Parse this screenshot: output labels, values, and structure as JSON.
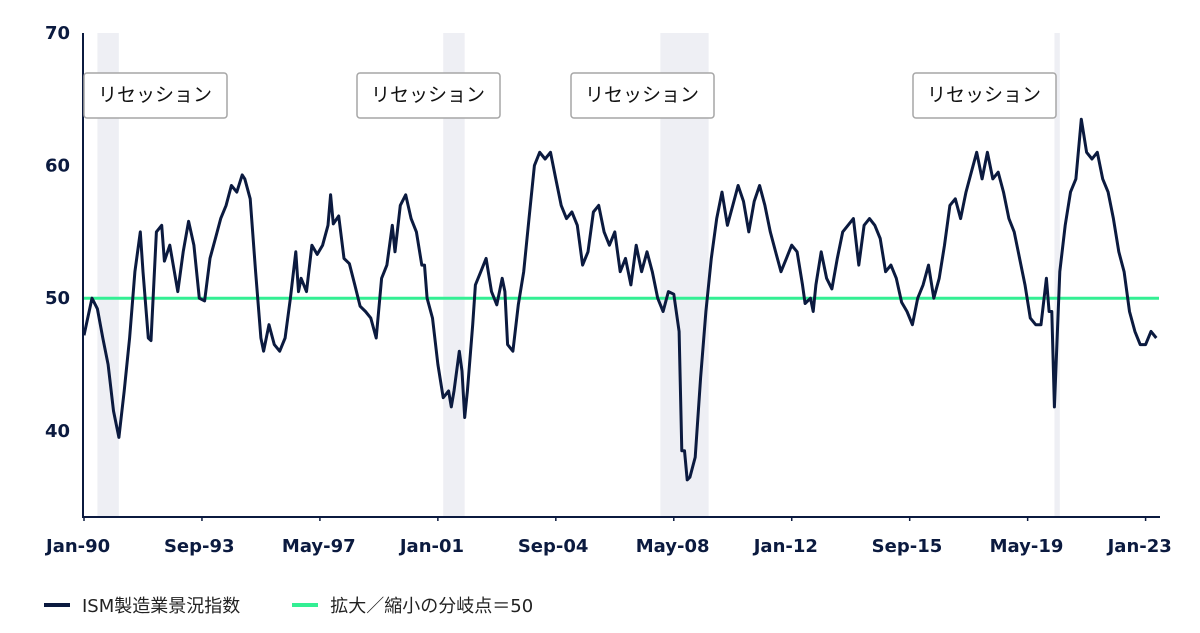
{
  "chart_data": {
    "type": "line",
    "ylim": [
      33.5,
      70
    ],
    "xlim_months": [
      0,
      401
    ],
    "y_ticks": [
      "40",
      "50",
      "60",
      "70"
    ],
    "x_ticks": [
      {
        "label": "Jan-90",
        "month": 0
      },
      {
        "label": "Sep-93",
        "month": 44
      },
      {
        "label": "May-97",
        "month": 88
      },
      {
        "label": "Jan-01",
        "month": 132
      },
      {
        "label": "Sep-04",
        "month": 176
      },
      {
        "label": "May-08",
        "month": 220
      },
      {
        "label": "Jan-12",
        "month": 264
      },
      {
        "label": "Sep-15",
        "month": 308
      },
      {
        "label": "May-19",
        "month": 352
      },
      {
        "label": "Jan-23",
        "month": 396
      }
    ],
    "recessions": [
      {
        "start": 5,
        "end": 13,
        "label": "リセッション"
      },
      {
        "start": 134,
        "end": 142,
        "label": "リセッション"
      },
      {
        "start": 215,
        "end": 233,
        "label": "リセッション"
      },
      {
        "start": 362,
        "end": 364,
        "label": "リセッション"
      }
    ],
    "series": [
      {
        "name": "ISM製造業景況指数",
        "color": "#0b1a3f",
        "points": [
          [
            0,
            47.2
          ],
          [
            3,
            50
          ],
          [
            5,
            49.2
          ],
          [
            7,
            47
          ],
          [
            9,
            45
          ],
          [
            11,
            41.5
          ],
          [
            13,
            39.5
          ],
          [
            15,
            43
          ],
          [
            17,
            47
          ],
          [
            19,
            52
          ],
          [
            21,
            55
          ],
          [
            22,
            52
          ],
          [
            24,
            47
          ],
          [
            25,
            46.8
          ],
          [
            27,
            55
          ],
          [
            29,
            55.5
          ],
          [
            30,
            52.8
          ],
          [
            32,
            54
          ],
          [
            35,
            50.5
          ],
          [
            37,
            53.5
          ],
          [
            39,
            55.8
          ],
          [
            41,
            54
          ],
          [
            43,
            50
          ],
          [
            45,
            49.8
          ],
          [
            47,
            53
          ],
          [
            49,
            54.5
          ],
          [
            51,
            56
          ],
          [
            53,
            57
          ],
          [
            55,
            58.5
          ],
          [
            57,
            58
          ],
          [
            59,
            59.3
          ],
          [
            60,
            59
          ],
          [
            62,
            57.5
          ],
          [
            64,
            52
          ],
          [
            66,
            47
          ],
          [
            67,
            46
          ],
          [
            69,
            48
          ],
          [
            71,
            46.5
          ],
          [
            73,
            46
          ],
          [
            75,
            47
          ],
          [
            77,
            50
          ],
          [
            79,
            53.5
          ],
          [
            80,
            50.5
          ],
          [
            81,
            51.5
          ],
          [
            83,
            50.5
          ],
          [
            85,
            54
          ],
          [
            87,
            53.3
          ],
          [
            89,
            54
          ],
          [
            91,
            55.5
          ],
          [
            92,
            57.8
          ],
          [
            93,
            55.6
          ],
          [
            95,
            56.2
          ],
          [
            97,
            53
          ],
          [
            99,
            52.6
          ],
          [
            101,
            51
          ],
          [
            103,
            49.4
          ],
          [
            105,
            49
          ],
          [
            107,
            48.5
          ],
          [
            109,
            47
          ],
          [
            111,
            51.5
          ],
          [
            113,
            52.5
          ],
          [
            115,
            55.5
          ],
          [
            116,
            53.5
          ],
          [
            118,
            57
          ],
          [
            120,
            57.8
          ],
          [
            122,
            56
          ],
          [
            124,
            55
          ],
          [
            126,
            52.5
          ],
          [
            127,
            52.5
          ],
          [
            128,
            50
          ],
          [
            130,
            48.5
          ],
          [
            132,
            45
          ],
          [
            134,
            42.5
          ],
          [
            136,
            43
          ],
          [
            137,
            41.8
          ],
          [
            138,
            43
          ],
          [
            140,
            46
          ],
          [
            141,
            44.5
          ],
          [
            142,
            41
          ],
          [
            143,
            43
          ],
          [
            145,
            48
          ],
          [
            146,
            51
          ],
          [
            148,
            52
          ],
          [
            150,
            53
          ],
          [
            152,
            50.5
          ],
          [
            154,
            49.5
          ],
          [
            156,
            51.5
          ],
          [
            157,
            50.5
          ],
          [
            158,
            46.5
          ],
          [
            160,
            46
          ],
          [
            162,
            49.5
          ],
          [
            164,
            52
          ],
          [
            166,
            56
          ],
          [
            168,
            60
          ],
          [
            170,
            61
          ],
          [
            172,
            60.5
          ],
          [
            174,
            61
          ],
          [
            176,
            59
          ],
          [
            178,
            57
          ],
          [
            180,
            56
          ],
          [
            182,
            56.5
          ],
          [
            184,
            55.5
          ],
          [
            186,
            52.5
          ],
          [
            188,
            53.5
          ],
          [
            190,
            56.5
          ],
          [
            192,
            57
          ],
          [
            194,
            55
          ],
          [
            196,
            54
          ],
          [
            198,
            55
          ],
          [
            200,
            52
          ],
          [
            202,
            53
          ],
          [
            204,
            51
          ],
          [
            206,
            54
          ],
          [
            208,
            52
          ],
          [
            210,
            53.5
          ],
          [
            212,
            52
          ],
          [
            214,
            50
          ],
          [
            216,
            49
          ],
          [
            218,
            50.5
          ],
          [
            220,
            50.3
          ],
          [
            222,
            47.5
          ],
          [
            223,
            38.5
          ],
          [
            224,
            38.5
          ],
          [
            225,
            36.3
          ],
          [
            226,
            36.5
          ],
          [
            228,
            38
          ],
          [
            230,
            44
          ],
          [
            232,
            49
          ],
          [
            234,
            53
          ],
          [
            236,
            56
          ],
          [
            238,
            58
          ],
          [
            240,
            55.5
          ],
          [
            242,
            57
          ],
          [
            244,
            58.5
          ],
          [
            246,
            57.3
          ],
          [
            248,
            55
          ],
          [
            250,
            57.3
          ],
          [
            252,
            58.5
          ],
          [
            254,
            57
          ],
          [
            256,
            55
          ],
          [
            258,
            53.5
          ],
          [
            260,
            52
          ],
          [
            262,
            53
          ],
          [
            264,
            54
          ],
          [
            266,
            53.5
          ],
          [
            268,
            51
          ],
          [
            269,
            49.6
          ],
          [
            271,
            50
          ],
          [
            272,
            49
          ],
          [
            273,
            51
          ],
          [
            275,
            53.5
          ],
          [
            277,
            51.5
          ],
          [
            279,
            50.7
          ],
          [
            281,
            53
          ],
          [
            283,
            55
          ],
          [
            285,
            55.5
          ],
          [
            287,
            56
          ],
          [
            289,
            52.5
          ],
          [
            291,
            55.5
          ],
          [
            293,
            56
          ],
          [
            295,
            55.5
          ],
          [
            297,
            54.5
          ],
          [
            299,
            52
          ],
          [
            301,
            52.5
          ],
          [
            303,
            51.5
          ],
          [
            305,
            49.7
          ],
          [
            307,
            49
          ],
          [
            309,
            48
          ],
          [
            311,
            50
          ],
          [
            313,
            51
          ],
          [
            315,
            52.5
          ],
          [
            317,
            50
          ],
          [
            319,
            51.5
          ],
          [
            321,
            54
          ],
          [
            323,
            57
          ],
          [
            325,
            57.5
          ],
          [
            327,
            56
          ],
          [
            329,
            58
          ],
          [
            331,
            59.5
          ],
          [
            333,
            61
          ],
          [
            335,
            59
          ],
          [
            337,
            61
          ],
          [
            339,
            59
          ],
          [
            341,
            59.5
          ],
          [
            343,
            58
          ],
          [
            345,
            56
          ],
          [
            347,
            55
          ],
          [
            349,
            53
          ],
          [
            351,
            51
          ],
          [
            353,
            48.5
          ],
          [
            355,
            48
          ],
          [
            357,
            48
          ],
          [
            359,
            51.5
          ],
          [
            360,
            49
          ],
          [
            361,
            49
          ],
          [
            362,
            41.8
          ],
          [
            364,
            52
          ],
          [
            366,
            55.5
          ],
          [
            368,
            58
          ],
          [
            370,
            59
          ],
          [
            372,
            63.5
          ],
          [
            374,
            61
          ],
          [
            376,
            60.5
          ],
          [
            378,
            61
          ],
          [
            380,
            59
          ],
          [
            382,
            58
          ],
          [
            384,
            56
          ],
          [
            386,
            53.5
          ],
          [
            388,
            52
          ],
          [
            390,
            49
          ],
          [
            392,
            47.5
          ],
          [
            394,
            46.5
          ],
          [
            396,
            46.5
          ],
          [
            398,
            47.5
          ],
          [
            400,
            47
          ]
        ]
      },
      {
        "name": "拡大／縮小の分岐点＝50",
        "color": "#33ef94",
        "value": 50
      }
    ]
  }
}
